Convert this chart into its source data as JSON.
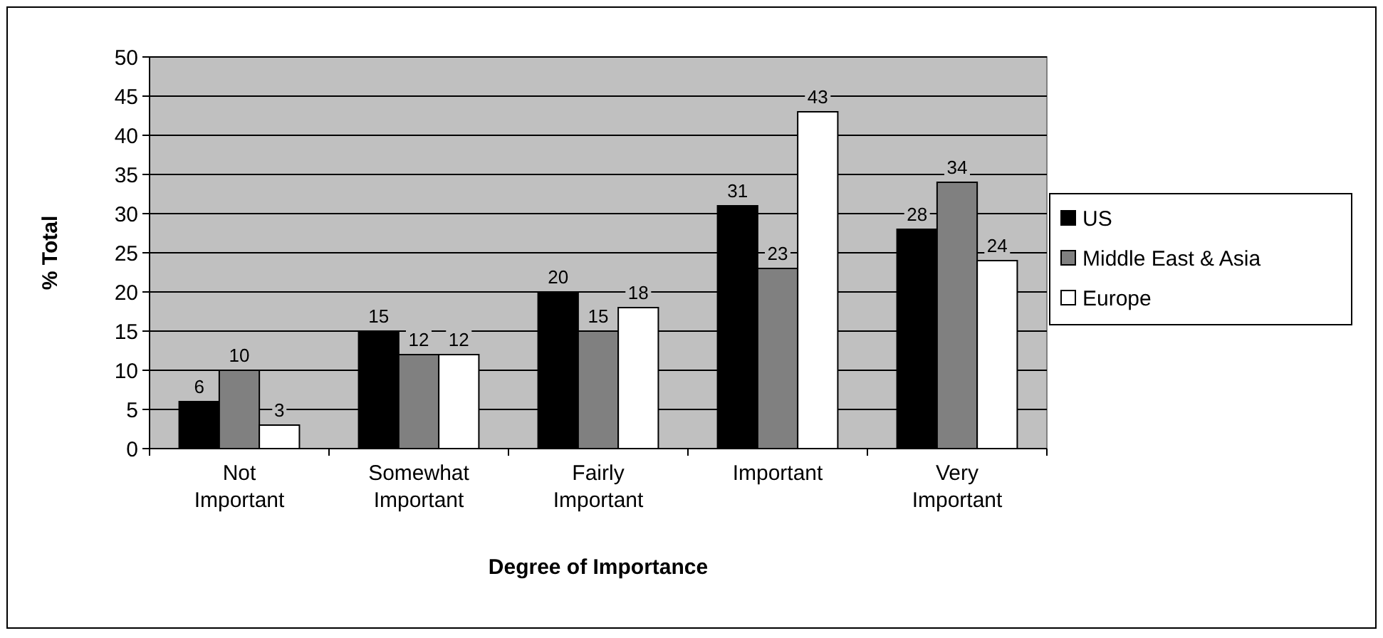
{
  "chart_data": {
    "type": "bar",
    "xlabel": "Degree of Importance",
    "ylabel": "% Total",
    "categories": [
      "Not Important",
      "Somewhat Important",
      "Fairly Important",
      "Important",
      "Very Important"
    ],
    "series": [
      {
        "name": "US",
        "color": "#000000",
        "values": [
          6,
          15,
          20,
          31,
          28
        ]
      },
      {
        "name": "Middle East & Asia",
        "color": "#808080",
        "values": [
          10,
          12,
          15,
          23,
          34
        ]
      },
      {
        "name": "Europe",
        "color": "#ffffff",
        "values": [
          3,
          12,
          18,
          43,
          24
        ]
      }
    ],
    "ylim": [
      0,
      50
    ],
    "yticks": [
      0,
      5,
      10,
      15,
      20,
      25,
      30,
      35,
      40,
      45,
      50
    ],
    "grid": "y",
    "legend": "right",
    "data_labels": true
  }
}
